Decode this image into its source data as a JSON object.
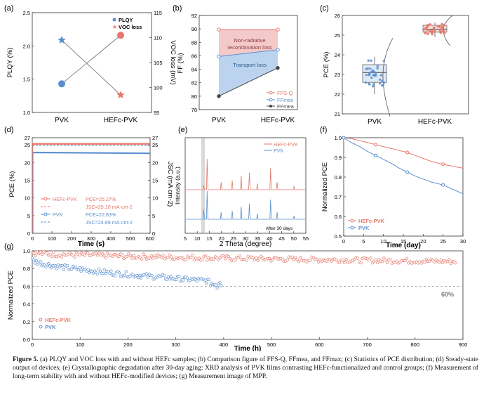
{
  "figure": {
    "caption_label": "Figure 5.",
    "caption_text": "(a) PLQY and VOC loss with and without HEFc samples; (b) Comparison figure of FFS-Q, FFmea, and FFmax; (c) Statistics of PCE distribution; (d) Steady-state output of devices; (e) Crystallographic degradation after 30-day aging: XRD analysis of PVK films contrasting HEFc-functionalized and control groups; (f) Measurement of long-term stability with and without HEFc-modified devices; (g) Measurement image of MPP."
  },
  "colors": {
    "red": "#e5786a",
    "blue": "#5b8fcf",
    "dark": "#444444",
    "pink_band": "#f4c9c9",
    "blue_band": "#bcd3ef"
  },
  "chart_data": [
    {
      "panel": "(a)",
      "type": "scatter",
      "categories": [
        "PVK",
        "HEFc-PVK"
      ],
      "ylabel_left": "PLQY (%)",
      "ylabel_right": "VOC loss (mV)",
      "ylim_left": [
        1.0,
        2.5
      ],
      "ylim_right": [
        95,
        115
      ],
      "yticks_left": [
        "1.0",
        "1.5",
        "2.0",
        "2.5"
      ],
      "yticks_right": [
        "95",
        "100",
        "105",
        "110",
        "115"
      ],
      "legend": [
        "PLQY",
        "VOC loss"
      ],
      "series": [
        {
          "name": "PLQY",
          "axis": "left",
          "values": [
            1.43,
            2.16
          ]
        },
        {
          "name": "VOC loss",
          "axis": "right",
          "values": [
            109.5,
            98.5
          ]
        }
      ]
    },
    {
      "panel": "(b)",
      "type": "line",
      "categories": [
        "PVK",
        "HEFc-PVK"
      ],
      "ylabel": "FF (%)",
      "ylim": [
        78,
        92
      ],
      "yticks": [
        "78",
        "80",
        "82",
        "84",
        "86",
        "88",
        "90",
        "92"
      ],
      "annotations": [
        "Non-radiative recombination loss",
        "Transport loss"
      ],
      "legend": [
        "FFS-Q",
        "FFmax",
        "FFmea"
      ],
      "series": [
        {
          "name": "FFS-Q",
          "values": [
            89.9,
            89.9
          ]
        },
        {
          "name": "FFmax",
          "values": [
            85.9,
            86.9
          ]
        },
        {
          "name": "FFmea",
          "values": [
            80.0,
            84.2
          ]
        }
      ]
    },
    {
      "panel": "(c)",
      "type": "box",
      "categories": [
        "PVK",
        "HEFc-PVK"
      ],
      "ylabel": "PCE (%)",
      "ylim": [
        21,
        26
      ],
      "yticks": [
        "21",
        "22",
        "23",
        "24",
        "25",
        "26"
      ],
      "boxes": [
        {
          "name": "PVK",
          "min": 22.0,
          "q1": 22.6,
          "median": 23.1,
          "q3": 23.5,
          "max": 23.9
        },
        {
          "name": "HEFc-PVK",
          "min": 24.9,
          "q1": 25.15,
          "median": 25.3,
          "q3": 25.5,
          "max": 25.65
        }
      ]
    },
    {
      "panel": "(d)",
      "type": "line",
      "xlabel": "Time (s)",
      "ylabel_left": "PCE (%)",
      "ylabel_right": "JSC (mA cm-2)",
      "xlim": [
        0,
        600
      ],
      "ylim": [
        0,
        27
      ],
      "xticks": [
        "0",
        "100",
        "200",
        "300",
        "400",
        "500",
        "600"
      ],
      "yticks": [
        "0",
        "5",
        "10",
        "15",
        "20",
        "25",
        "27"
      ],
      "series": [
        {
          "name": "HEFc-PVK PCE=25.27%",
          "values": [
            25.27,
            25.27
          ]
        },
        {
          "name": "JSC=25.10 mA·cm-2",
          "values": [
            25.1,
            25.1
          ]
        },
        {
          "name": "PVK PCE=22.83%",
          "values": [
            22.83,
            22.6
          ]
        },
        {
          "name": "JSC=24.69 mA·cm-2",
          "values": [
            24.69,
            24.69
          ]
        }
      ],
      "legend": [
        {
          "name": "HEFc-PVK",
          "value": "PCE=25.27%"
        },
        {
          "name": "",
          "value": "JSC=25.10 mA·cm-2"
        },
        {
          "name": "PVK",
          "value": "PCE=22.83%"
        },
        {
          "name": "",
          "value": "JSC=24.69 mA·cm-2"
        }
      ]
    },
    {
      "panel": "(e)",
      "type": "line",
      "xlabel": "2 Theta (degree)",
      "ylabel": "Intensity (a.u.)",
      "xlim": [
        5,
        55
      ],
      "xticks": [
        "5",
        "10",
        "15",
        "20",
        "25",
        "30",
        "35",
        "40",
        "45",
        "50",
        "55"
      ],
      "annotation": "After 30 days",
      "peaks": [
        12.7,
        14.1,
        19.9,
        24.5,
        28.2,
        31.6,
        34.9,
        40.4,
        43.1,
        50.1
      ],
      "series": [
        {
          "name": "HEFc-PVK",
          "heights": [
            0.15,
            1.0,
            0.25,
            0.3,
            0.45,
            0.55,
            0.2,
            0.7,
            0.25,
            0.12
          ]
        },
        {
          "name": "PVK",
          "heights": [
            0.35,
            1.0,
            0.25,
            0.3,
            0.45,
            0.55,
            0.2,
            0.7,
            0.25,
            0.12
          ]
        }
      ]
    },
    {
      "panel": "(f)",
      "type": "line",
      "xlabel": "Time (day)",
      "ylabel": "Normalized PCE",
      "xlim": [
        0,
        30
      ],
      "ylim": [
        0.5,
        1.0
      ],
      "xticks": [
        "0",
        "5",
        "10",
        "15",
        "20",
        "25",
        "30"
      ],
      "yticks": [
        "0.5",
        "0.6",
        "0.7",
        "0.8",
        "0.9",
        "1.0"
      ],
      "series": [
        {
          "name": "HEFc-PVK",
          "x": [
            0,
            2,
            4,
            6,
            8,
            10,
            12,
            14,
            16,
            18,
            20,
            22,
            25,
            30
          ],
          "values": [
            1.0,
            0.995,
            0.985,
            0.975,
            0.965,
            0.955,
            0.945,
            0.935,
            0.925,
            0.91,
            0.895,
            0.88,
            0.865,
            0.845
          ]
        },
        {
          "name": "PVK",
          "x": [
            0,
            2,
            4,
            6,
            8,
            10,
            12,
            14,
            16,
            18,
            20,
            22,
            25,
            30
          ],
          "values": [
            1.0,
            0.975,
            0.955,
            0.93,
            0.91,
            0.89,
            0.87,
            0.845,
            0.825,
            0.805,
            0.79,
            0.775,
            0.76,
            0.715
          ]
        }
      ]
    },
    {
      "panel": "(g)",
      "type": "scatter",
      "xlabel": "Time (h)",
      "ylabel": "Normalized PCE",
      "xlim": [
        0,
        900
      ],
      "ylim": [
        0,
        1.0
      ],
      "xticks": [
        "0",
        "100",
        "200",
        "300",
        "400",
        "500",
        "600",
        "700",
        "800",
        "900"
      ],
      "yticks": [
        "0.0",
        "0.2",
        "0.4",
        "0.6",
        "0.8",
        "1.0"
      ],
      "reference": {
        "value": 0.6,
        "label": "60%"
      },
      "series": [
        {
          "name": "HEFc-PVK",
          "x_range": [
            0,
            885
          ],
          "start": 0.98,
          "end": 0.88
        },
        {
          "name": "PVK",
          "x_range": [
            0,
            395
          ],
          "start": 0.9,
          "end": 0.65
        }
      ]
    }
  ]
}
